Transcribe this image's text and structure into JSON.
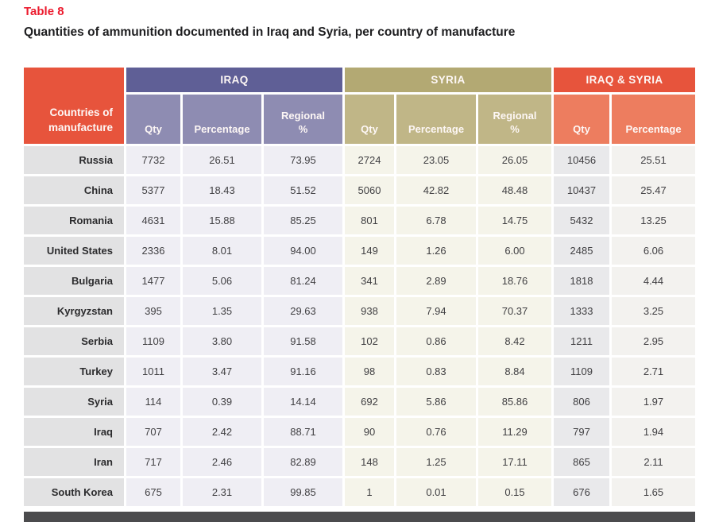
{
  "header": {
    "table_label": "Table 8",
    "title": "Quantities of ammunition documented in Iraq and Syria, per country of manufacture"
  },
  "table": {
    "label_header": "Countries of manufacture",
    "groups": [
      {
        "label": "IRAQ",
        "columns": [
          "Qty",
          "Percentage",
          "Regional %"
        ]
      },
      {
        "label": "SYRIA",
        "columns": [
          "Qty",
          "Percentage",
          "Regional %"
        ]
      },
      {
        "label": "IRAQ & SYRIA",
        "columns": [
          "Qty",
          "Percentage"
        ]
      }
    ],
    "rows": [
      {
        "country": "Russia",
        "values": [
          "7732",
          "26.51",
          "73.95",
          "2724",
          "23.05",
          "26.05",
          "10456",
          "25.51"
        ]
      },
      {
        "country": "China",
        "values": [
          "5377",
          "18.43",
          "51.52",
          "5060",
          "42.82",
          "48.48",
          "10437",
          "25.47"
        ]
      },
      {
        "country": "Romania",
        "values": [
          "4631",
          "15.88",
          "85.25",
          "801",
          "6.78",
          "14.75",
          "5432",
          "13.25"
        ]
      },
      {
        "country": "United States",
        "values": [
          "2336",
          "8.01",
          "94.00",
          "149",
          "1.26",
          "6.00",
          "2485",
          "6.06"
        ]
      },
      {
        "country": "Bulgaria",
        "values": [
          "1477",
          "5.06",
          "81.24",
          "341",
          "2.89",
          "18.76",
          "1818",
          "4.44"
        ]
      },
      {
        "country": "Kyrgyzstan",
        "values": [
          "395",
          "1.35",
          "29.63",
          "938",
          "7.94",
          "70.37",
          "1333",
          "3.25"
        ]
      },
      {
        "country": "Serbia",
        "values": [
          "1109",
          "3.80",
          "91.58",
          "102",
          "0.86",
          "8.42",
          "1211",
          "2.95"
        ]
      },
      {
        "country": "Turkey",
        "values": [
          "1011",
          "3.47",
          "91.16",
          "98",
          "0.83",
          "8.84",
          "1109",
          "2.71"
        ]
      },
      {
        "country": "Syria",
        "values": [
          "114",
          "0.39",
          "14.14",
          "692",
          "5.86",
          "85.86",
          "806",
          "1.97"
        ]
      },
      {
        "country": "Iraq",
        "values": [
          "707",
          "2.42",
          "88.71",
          "90",
          "0.76",
          "11.29",
          "797",
          "1.94"
        ]
      },
      {
        "country": "Iran",
        "values": [
          "717",
          "2.46",
          "82.89",
          "148",
          "1.25",
          "17.11",
          "865",
          "2.11"
        ]
      },
      {
        "country": "South Korea",
        "values": [
          "675",
          "2.31",
          "99.85",
          "1",
          "0.01",
          "0.15",
          "676",
          "1.65"
        ]
      }
    ]
  },
  "colors": {
    "title_red": "#ec1b2e",
    "accent_orange": "#e7543c",
    "accent_orange_light": "#ed7d5f",
    "iraq_dark": "#5f5f96",
    "iraq_light": "#8e8cb2",
    "syria_dark": "#b3a973",
    "syria_light": "#c0b687",
    "row_label_bg": "#e2e2e3",
    "iraq_cell_bg": "#efeef4",
    "syria_cell_bg": "#f5f4ea",
    "is_qty_bg": "#e9e9eb",
    "is_pct_bg": "#f3f2ef",
    "footer_bar": "#4b4b4d"
  }
}
